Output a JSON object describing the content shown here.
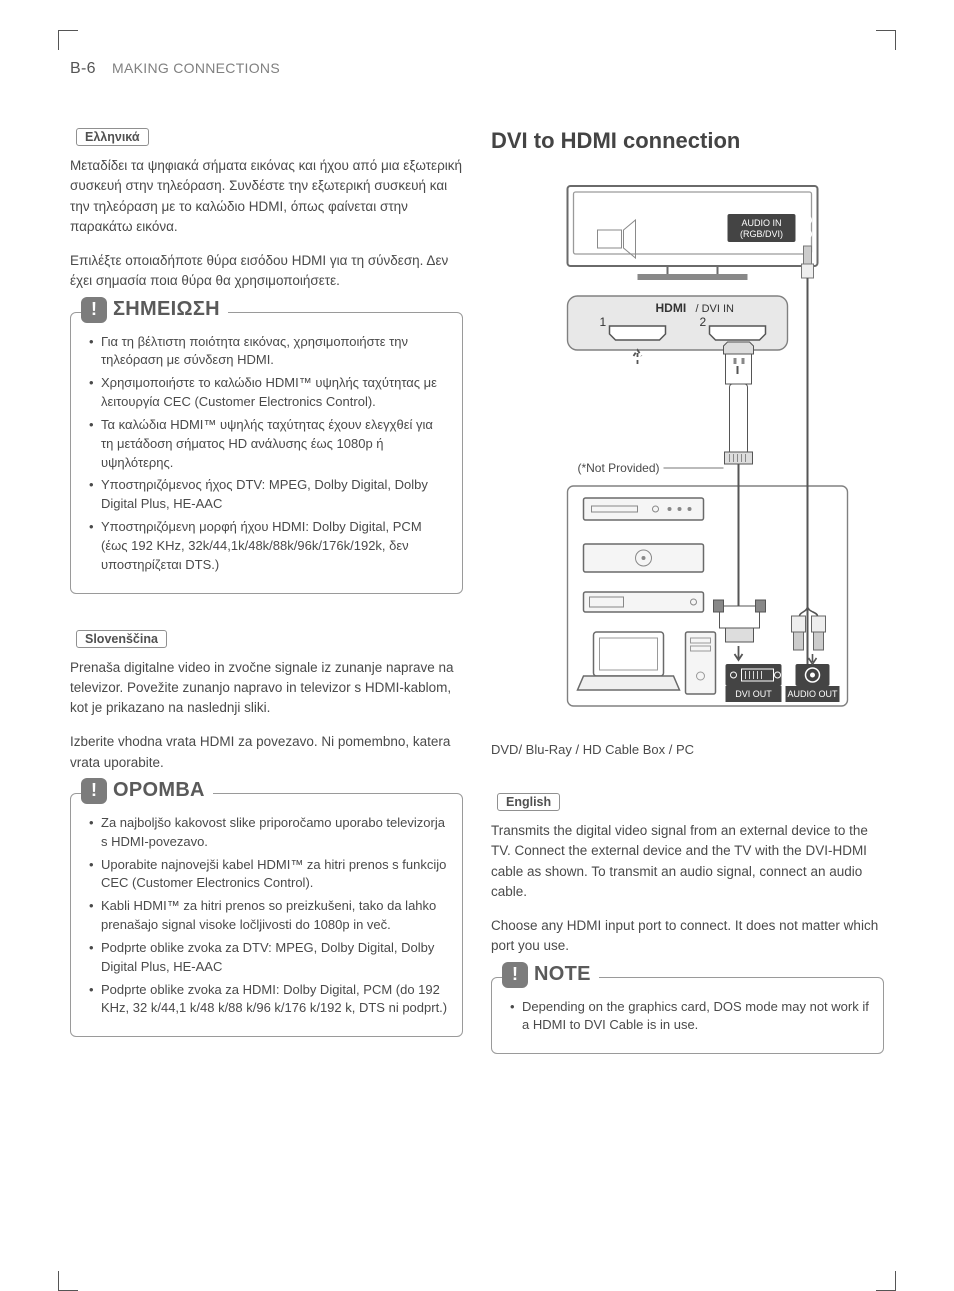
{
  "header": {
    "page_num": "B-6",
    "section": "MAKING CONNECTIONS"
  },
  "left": {
    "greek": {
      "lang_label": "Ελληνικά",
      "para1": "Μεταδίδει τα ψηφιακά σήματα εικόνας και ήχου από μια εξωτερική συσκευή στην τηλεόραση. Συνδέστε την εξωτερική συσκευή και την τηλεόραση με το καλώδιο HDMI, όπως φαίνεται στην παρακάτω εικόνα.",
      "para2": "Επιλέξτε οποιαδήποτε θύρα εισόδου HDMI για τη σύνδεση. Δεν έχει σημασία ποια θύρα θα χρησιμοποιήσετε.",
      "note_title": "ΣΗΜΕΙΩΣΗ",
      "bullets": [
        "Για τη βέλτιστη ποιότητα εικόνας, χρησιμοποιήστε την τηλεόραση με σύνδεση HDMI.",
        "Χρησιμοποιήστε το καλώδιο HDMI™ υψηλής ταχύτητας με λειτουργία CEC (Customer Electronics Control).",
        "Τα καλώδια HDMI™ υψηλής ταχύτητας έχουν ελεγχθεί για τη μετάδοση σήματος HD ανάλυσης έως 1080p ή υψηλότερης.",
        "Υποστηριζόμενος ήχος DTV: MPEG, Dolby Digital, Dolby Digital Plus, HE-AAC",
        "Υποστηριζόμενη μορφή ήχου HDMI: Dolby Digital, PCM (έως 192 KHz, 32k/44,1k/48k/88k/96k/176k/192k, δεν υποστηρίζεται DTS.)"
      ]
    },
    "slovenian": {
      "lang_label": "Slovenščina",
      "para1": "Prenaša digitalne video in zvočne signale iz zunanje naprave na televizor. Povežite zunanjo napravo in televizor s HDMI-kablom, kot je prikazano na naslednji sliki.",
      "para2": "Izberite vhodna vrata HDMI za povezavo. Ni pomembno, katera vrata uporabite.",
      "note_title": "OPOMBA",
      "bullets": [
        "Za najboljšo kakovost slike priporočamo uporabo televizorja s HDMI-povezavo.",
        "Uporabite najnovejši kabel HDMI™ za hitri prenos s funkcijo CEC (Customer Electronics Control).",
        "Kabli HDMI™ za hitri prenos so preizkušeni, tako da lahko prenašajo signal visoke ločljivosti do 1080p in več.",
        "Podprte oblike zvoka za DTV: MPEG, Dolby Digital, Dolby Digital Plus, HE-AAC",
        "Podprte oblike zvoka za HDMI: Dolby Digital, PCM (do 192 KHz, 32 k/44,1 k/48 k/88 k/96 k/176 k/192 k, DTS ni podprt.)"
      ]
    }
  },
  "right": {
    "heading": "DVI to HDMI connection",
    "diagram": {
      "audio_in": "AUDIO IN\n(RGB/DVI)",
      "hdmi_label": "HDMI",
      "dvi_in": "/ DVI IN",
      "port1": "1",
      "port2": "2",
      "not_provided": "(*Not Provided)",
      "dvi_out": "DVI OUT",
      "audio_out": "AUDIO OUT",
      "tv_color": "#888888",
      "port_panel_fill": "#e8e8e8",
      "port_panel_stroke": "#808080",
      "label_bg": "#444444",
      "cable_color": "#555555",
      "device_stroke": "#6a6a6a"
    },
    "caption": "DVD/ Blu-Ray / HD Cable Box / PC",
    "english": {
      "lang_label": "English",
      "para1": "Transmits the digital video signal from an external device to the TV. Connect the external device and the TV with the DVI-HDMI cable as shown. To transmit an audio signal, connect an audio cable.",
      "para2": "Choose any HDMI input port to connect. It does not matter which port you use.",
      "note_title": "NOTE",
      "bullets": [
        "Depending on the graphics card, DOS mode may not work if a HDMI to DVI Cable is in use."
      ]
    }
  },
  "style": {
    "text_color": "#4a4a4a",
    "heading_color": "#444444",
    "border_color": "#9a9a9a",
    "lang_tag_border": "#909090",
    "note_icon_bg": "#7c7c7c",
    "body_font_size": 13.5,
    "heading_font_size": 22,
    "note_title_font_size": 20
  }
}
